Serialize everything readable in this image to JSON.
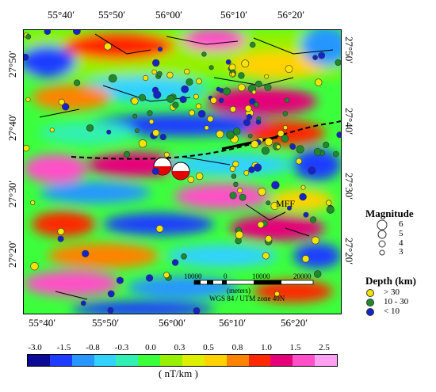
{
  "map": {
    "lon_labels": [
      "55°40′",
      "55°50′",
      "56°00′",
      "56°10′",
      "56°20′"
    ],
    "lat_labels": [
      "27°50′",
      "27°40′",
      "27°30′",
      "27°20′"
    ],
    "fault_label": "MFF",
    "scale_bar": {
      "ticks": [
        "10000",
        "0",
        "10000",
        "20000"
      ],
      "unit": "(meters)",
      "projection": "WGS 84 / UTM zone 40N"
    }
  },
  "magnitude_legend": {
    "title": "Magnitude",
    "items": [
      "6",
      "5",
      "4",
      "3"
    ]
  },
  "depth_legend": {
    "title": "Depth (km)",
    "items": [
      {
        "label": "> 30",
        "color": "#f5e400"
      },
      {
        "label": "10  -  30",
        "color": "#1f8a2a"
      },
      {
        "label": "< 10",
        "color": "#1424c8"
      }
    ]
  },
  "colorbar": {
    "ticks": [
      "-3.0",
      "-1.5",
      "-0.8",
      "-0.3",
      "0.0",
      "0.3",
      "0.5",
      "0.8",
      "1.0",
      "1.5",
      "2.5"
    ],
    "unit": "( nT/km )",
    "colors": [
      "#0a0a96",
      "#1e3cff",
      "#2896ff",
      "#32d2ff",
      "#32f0b4",
      "#3cff3c",
      "#96f000",
      "#dcf000",
      "#ffd200",
      "#ff8200",
      "#ff2800",
      "#e6007a",
      "#ff50c8",
      "#ffa0f0"
    ]
  }
}
